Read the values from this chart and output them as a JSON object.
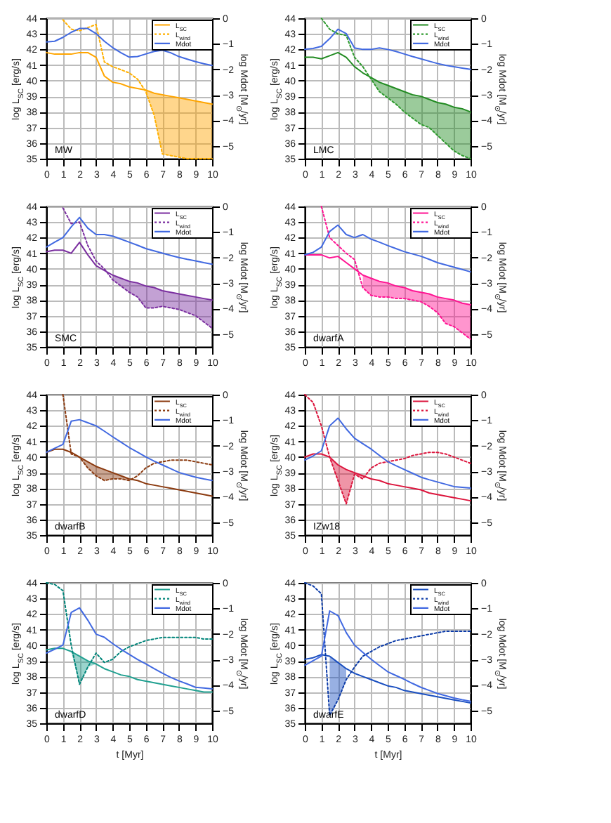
{
  "chart_data": [
    {
      "type": "line",
      "x": [
        0,
        0.5,
        1,
        1.5,
        2,
        2.5,
        3,
        3.5,
        4,
        4.5,
        5,
        5.5,
        6,
        6.5,
        7,
        7.5,
        8,
        8.5,
        9,
        9.5,
        10
      ],
      "xlim": [
        0,
        10
      ],
      "xticks": [
        0,
        1,
        2,
        3,
        4,
        5,
        6,
        7,
        8,
        9,
        10
      ],
      "ylim": [
        35,
        44
      ],
      "yticks": [
        35,
        36,
        37,
        38,
        39,
        40,
        41,
        42,
        43,
        44
      ],
      "y2lim": [
        -5.5,
        0
      ],
      "y2ticks": [
        -5,
        -4,
        -3,
        -2,
        -1,
        0
      ],
      "ylabel": "log L$_{SC}$ [erg/s]",
      "y2label": "log Mdot [M$_{⊙}$/yr]",
      "grid": true,
      "legend": "top right",
      "annotations": [
        "MW"
      ],
      "series": [
        {
          "name": "L$_{SC}$",
          "color": "#ffa500",
          "values": [
            41.8,
            41.7,
            41.7,
            41.7,
            41.8,
            41.8,
            41.5,
            40.3,
            39.9,
            39.8,
            39.6,
            39.5,
            39.4,
            39.2,
            39.1,
            39.0,
            38.9,
            38.8,
            38.7,
            38.6,
            38.5
          ],
          "lower": [
            null,
            null,
            null,
            null,
            null,
            null,
            null,
            null,
            null,
            null,
            null,
            null,
            39.3,
            37.8,
            35.3,
            35.2,
            35.1,
            35.0,
            35.0,
            35.0,
            35.0
          ],
          "upper": [
            null,
            null,
            null,
            null,
            null,
            null,
            null,
            null,
            null,
            null,
            null,
            null,
            39.4,
            39.2,
            39.1,
            39.0,
            38.9,
            38.8,
            38.7,
            38.6,
            38.5
          ]
        },
        {
          "name": "L$_{wind}$",
          "color": "#ffb000",
          "line_style": "dotted",
          "values": [
            null,
            null,
            43.9,
            43.3,
            43.2,
            43.4,
            43.6,
            41.2,
            40.9,
            40.7,
            40.5,
            40.1,
            39.3,
            37.8,
            35.3,
            35.2,
            35.1,
            35.0,
            35.0,
            35.0,
            35.0
          ]
        },
        {
          "name": "Mdot",
          "color": "#4169e1",
          "axis": "y2",
          "values": [
            -0.93,
            -0.9,
            -0.75,
            -0.55,
            -0.4,
            -0.4,
            -0.6,
            -0.9,
            -1.15,
            -1.35,
            -1.52,
            -1.5,
            -1.4,
            -1.3,
            -1.25,
            -1.35,
            -1.5,
            -1.6,
            -1.7,
            -1.78,
            -1.85
          ]
        }
      ]
    },
    {
      "type": "line",
      "x": [
        0,
        0.5,
        1,
        1.5,
        2,
        2.5,
        3,
        3.5,
        4,
        4.5,
        5,
        5.5,
        6,
        6.5,
        7,
        7.5,
        8,
        8.5,
        9,
        9.5,
        10
      ],
      "xlim": [
        0,
        10
      ],
      "xticks": [
        0,
        1,
        2,
        3,
        4,
        5,
        6,
        7,
        8,
        9,
        10
      ],
      "ylim": [
        35,
        44
      ],
      "yticks": [
        35,
        36,
        37,
        38,
        39,
        40,
        41,
        42,
        43,
        44
      ],
      "y2lim": [
        -5.5,
        0
      ],
      "y2ticks": [
        -5,
        -4,
        -3,
        -2,
        -1,
        0
      ],
      "ylabel": "log L$_{SC}$ [erg/s]",
      "y2label": "log Mdot [M$_{⊙}$/yr]",
      "grid": true,
      "legend": "top right",
      "annotations": [
        "LMC"
      ],
      "series": [
        {
          "name": "L$_{SC}$",
          "color": "#228b22",
          "values": [
            41.5,
            41.5,
            41.4,
            41.6,
            41.8,
            41.5,
            40.9,
            40.5,
            40.2,
            39.9,
            39.7,
            39.5,
            39.3,
            39.1,
            39.0,
            38.8,
            38.6,
            38.5,
            38.3,
            38.2,
            38.0
          ],
          "lower": [
            null,
            null,
            null,
            null,
            null,
            null,
            null,
            null,
            40.1,
            39.3,
            38.9,
            38.5,
            38.0,
            37.6,
            37.2,
            37.0,
            36.5,
            36.0,
            35.5,
            35.2,
            35.0
          ],
          "upper": [
            null,
            null,
            null,
            null,
            null,
            null,
            null,
            null,
            40.2,
            39.9,
            39.7,
            39.5,
            39.3,
            39.1,
            39.0,
            38.8,
            38.6,
            38.5,
            38.3,
            38.2,
            38.0
          ]
        },
        {
          "name": "L$_{wind}$",
          "color": "#2e9a2e",
          "line_style": "dotted",
          "values": [
            null,
            null,
            44,
            43.3,
            43.0,
            42.9,
            41.5,
            40.9,
            40.1,
            39.3,
            38.9,
            38.5,
            38.0,
            37.6,
            37.2,
            37.0,
            36.5,
            36.0,
            35.5,
            35.2,
            35.0
          ]
        },
        {
          "name": "Mdot",
          "color": "#4169e1",
          "axis": "y2",
          "values": [
            -1.22,
            -1.18,
            -1.1,
            -0.8,
            -0.43,
            -0.6,
            -1.16,
            -1.22,
            -1.22,
            -1.16,
            -1.22,
            -1.3,
            -1.4,
            -1.5,
            -1.59,
            -1.68,
            -1.77,
            -1.84,
            -1.9,
            -1.95,
            -2.0
          ]
        }
      ]
    },
    {
      "type": "line",
      "x": [
        0,
        0.5,
        1,
        1.5,
        2,
        2.5,
        3,
        3.5,
        4,
        4.5,
        5,
        5.5,
        6,
        6.5,
        7,
        7.5,
        8,
        8.5,
        9,
        9.5,
        10
      ],
      "xlim": [
        0,
        10
      ],
      "xticks": [
        0,
        1,
        2,
        3,
        4,
        5,
        6,
        7,
        8,
        9,
        10
      ],
      "ylim": [
        35,
        44
      ],
      "yticks": [
        35,
        36,
        37,
        38,
        39,
        40,
        41,
        42,
        43,
        44
      ],
      "y2lim": [
        -5.5,
        0
      ],
      "y2ticks": [
        -5,
        -4,
        -3,
        -2,
        -1,
        0
      ],
      "ylabel": "log L$_{SC}$ [erg/s]",
      "y2label": "log Mdot [M$_{⊙}$/yr]",
      "grid": true,
      "legend": "top right",
      "annotations": [
        "SMC"
      ],
      "series": [
        {
          "name": "L$_{SC}$",
          "color": "#7b2fa0",
          "values": [
            41.1,
            41.2,
            41.2,
            41.0,
            41.7,
            40.9,
            40.2,
            39.9,
            39.6,
            39.4,
            39.2,
            39.1,
            38.9,
            38.8,
            38.6,
            38.5,
            38.4,
            38.3,
            38.2,
            38.1,
            38.0
          ],
          "lower": [
            null,
            null,
            null,
            null,
            null,
            null,
            null,
            null,
            39.3,
            38.9,
            38.5,
            38.2,
            37.5,
            37.5,
            37.6,
            37.5,
            37.4,
            37.2,
            37.0,
            36.6,
            36.2
          ],
          "upper": [
            null,
            null,
            null,
            null,
            null,
            null,
            null,
            null,
            39.6,
            39.4,
            39.2,
            39.1,
            38.9,
            38.8,
            38.6,
            38.5,
            38.4,
            38.3,
            38.2,
            38.1,
            38.0
          ]
        },
        {
          "name": "L$_{wind}$",
          "color": "#7b2fa0",
          "line_style": "dotted",
          "values": [
            null,
            null,
            43.9,
            42.9,
            43.0,
            41.5,
            40.5,
            40.0,
            39.3,
            38.9,
            38.5,
            38.2,
            37.5,
            37.5,
            37.6,
            37.5,
            37.4,
            37.2,
            37.0,
            36.6,
            36.2
          ]
        },
        {
          "name": "Mdot",
          "color": "#4169e1",
          "axis": "y2",
          "values": [
            -1.59,
            -1.4,
            -1.22,
            -0.8,
            -0.43,
            -0.85,
            -1.1,
            -1.1,
            -1.16,
            -1.28,
            -1.4,
            -1.52,
            -1.65,
            -1.74,
            -1.83,
            -1.92,
            -2.0,
            -2.07,
            -2.13,
            -2.2,
            -2.26
          ]
        }
      ]
    },
    {
      "type": "line",
      "x": [
        0,
        0.5,
        1,
        1.5,
        2,
        2.5,
        3,
        3.5,
        4,
        4.5,
        5,
        5.5,
        6,
        6.5,
        7,
        7.5,
        8,
        8.5,
        9,
        9.5,
        10
      ],
      "xlim": [
        0,
        10
      ],
      "xticks": [
        0,
        1,
        2,
        3,
        4,
        5,
        6,
        7,
        8,
        9,
        10
      ],
      "ylim": [
        35,
        44
      ],
      "yticks": [
        35,
        36,
        37,
        38,
        39,
        40,
        41,
        42,
        43,
        44
      ],
      "y2lim": [
        -5.5,
        0
      ],
      "y2ticks": [
        -5,
        -4,
        -3,
        -2,
        -1,
        0
      ],
      "ylabel": "log L$_{SC}$ [erg/s]",
      "y2label": "log Mdot [M$_{⊙}$/yr]",
      "grid": true,
      "legend": "top right",
      "annotations": [
        "dwarfA"
      ],
      "series": [
        {
          "name": "L$_{SC}$",
          "color": "#ff1493",
          "values": [
            40.9,
            40.9,
            40.9,
            40.7,
            40.8,
            40.4,
            40.0,
            39.6,
            39.4,
            39.2,
            39.1,
            38.9,
            38.8,
            38.6,
            38.5,
            38.4,
            38.2,
            38.1,
            38.0,
            37.8,
            37.7
          ],
          "lower": [
            null,
            null,
            null,
            null,
            null,
            null,
            null,
            38.8,
            38.3,
            38.2,
            38.2,
            38.1,
            38.1,
            38.0,
            37.9,
            37.6,
            37.2,
            36.5,
            36.3,
            35.9,
            35.5
          ],
          "upper": [
            null,
            null,
            null,
            null,
            null,
            null,
            null,
            39.6,
            39.4,
            39.2,
            39.1,
            38.9,
            38.8,
            38.6,
            38.5,
            38.4,
            38.2,
            38.1,
            38.0,
            37.8,
            37.7
          ]
        },
        {
          "name": "L$_{wind}$",
          "color": "#ff1493",
          "line_style": "dotted",
          "values": [
            null,
            null,
            44,
            42.0,
            41.5,
            41.0,
            40.6,
            38.8,
            38.3,
            38.2,
            38.2,
            38.1,
            38.1,
            38.0,
            37.9,
            37.6,
            37.2,
            36.5,
            36.3,
            35.9,
            35.5
          ]
        },
        {
          "name": "Mdot",
          "color": "#4169e1",
          "axis": "y2",
          "values": [
            -1.89,
            -1.8,
            -1.59,
            -0.98,
            -0.73,
            -1.1,
            -1.22,
            -1.1,
            -1.28,
            -1.4,
            -1.53,
            -1.65,
            -1.77,
            -1.86,
            -1.95,
            -2.07,
            -2.2,
            -2.29,
            -2.38,
            -2.47,
            -2.56
          ]
        }
      ]
    },
    {
      "type": "line",
      "x": [
        0,
        0.5,
        1,
        1.5,
        2,
        2.5,
        3,
        3.5,
        4,
        4.5,
        5,
        5.5,
        6,
        6.5,
        7,
        7.5,
        8,
        8.5,
        9,
        9.5,
        10
      ],
      "xlim": [
        0,
        10
      ],
      "xticks": [
        0,
        1,
        2,
        3,
        4,
        5,
        6,
        7,
        8,
        9,
        10
      ],
      "ylim": [
        35,
        44
      ],
      "yticks": [
        35,
        36,
        37,
        38,
        39,
        40,
        41,
        42,
        43,
        44
      ],
      "y2lim": [
        -5.5,
        0
      ],
      "y2ticks": [
        -5,
        -4,
        -3,
        -2,
        -1,
        0
      ],
      "ylabel": "log L$_{SC}$ [erg/s]",
      "y2label": "log Mdot [M$_{⊙}$/yr]",
      "grid": true,
      "legend": "top right",
      "annotations": [
        "dwarfB"
      ],
      "series": [
        {
          "name": "L$_{SC}$",
          "color": "#8b3a0f",
          "values": [
            40.3,
            40.5,
            40.5,
            40.3,
            40.0,
            39.7,
            39.4,
            39.2,
            39.0,
            38.8,
            38.6,
            38.5,
            38.3,
            38.2,
            38.1,
            38.0,
            37.9,
            37.8,
            37.7,
            37.6,
            37.5
          ],
          "lower": [
            null,
            null,
            null,
            null,
            40.0,
            39.3,
            38.8,
            38.5,
            38.6,
            38.6,
            38.5,
            null,
            null,
            null,
            null,
            null,
            null,
            null,
            null,
            null,
            null
          ],
          "upper": [
            null,
            null,
            null,
            null,
            40.0,
            39.7,
            39.4,
            39.2,
            39.0,
            38.8,
            38.6,
            null,
            null,
            null,
            null,
            null,
            null,
            null,
            null,
            null,
            null
          ]
        },
        {
          "name": "L$_{wind}$",
          "color": "#8b3a0f",
          "line_style": "dotted",
          "values": [
            null,
            null,
            44,
            40.2,
            40.0,
            39.3,
            38.8,
            38.5,
            38.6,
            38.6,
            38.5,
            38.8,
            39.3,
            39.6,
            39.7,
            39.8,
            39.8,
            39.8,
            39.7,
            39.6,
            39.5
          ]
        },
        {
          "name": "Mdot",
          "color": "#4169e1",
          "axis": "y2",
          "values": [
            -2.26,
            -2.1,
            -1.95,
            -1.04,
            -0.98,
            -1.1,
            -1.22,
            -1.43,
            -1.65,
            -1.86,
            -2.07,
            -2.25,
            -2.44,
            -2.6,
            -2.75,
            -2.9,
            -3.05,
            -3.14,
            -3.23,
            -3.3,
            -3.36
          ]
        }
      ]
    },
    {
      "type": "line",
      "x": [
        0,
        0.5,
        1,
        1.5,
        2,
        2.5,
        3,
        3.5,
        4,
        4.5,
        5,
        5.5,
        6,
        6.5,
        7,
        7.5,
        8,
        8.5,
        9,
        9.5,
        10
      ],
      "xlim": [
        0,
        10
      ],
      "xticks": [
        0,
        1,
        2,
        3,
        4,
        5,
        6,
        7,
        8,
        9,
        10
      ],
      "ylim": [
        35,
        44
      ],
      "yticks": [
        35,
        36,
        37,
        38,
        39,
        40,
        41,
        42,
        43,
        44
      ],
      "y2lim": [
        -5.5,
        0
      ],
      "y2ticks": [
        -5,
        -4,
        -3,
        -2,
        -1,
        0
      ],
      "ylabel": "log L$_{SC}$ [erg/s]",
      "y2label": "log Mdot [M$_{⊙}$/yr]",
      "grid": true,
      "legend": "top right",
      "annotations": [
        "IZw18"
      ],
      "series": [
        {
          "name": "L$_{SC}$",
          "color": "#dc143c",
          "values": [
            40.0,
            40.2,
            40.2,
            40.0,
            39.5,
            39.2,
            39.0,
            38.8,
            38.6,
            38.5,
            38.3,
            38.2,
            38.1,
            38.0,
            37.9,
            37.7,
            37.6,
            37.5,
            37.4,
            37.3,
            37.2
          ],
          "lower": [
            null,
            null,
            null,
            40.0,
            38.5,
            37.0,
            38.9,
            38.6,
            null,
            null,
            null,
            null,
            null,
            null,
            null,
            null,
            null,
            null,
            null,
            null,
            null
          ],
          "upper": [
            null,
            null,
            null,
            40.0,
            39.5,
            39.2,
            39.0,
            38.8,
            null,
            null,
            null,
            null,
            null,
            null,
            null,
            null,
            null,
            null,
            null,
            null,
            null
          ]
        },
        {
          "name": "L$_{wind}$",
          "color": "#dc143c",
          "line_style": "dotted",
          "values": [
            44,
            43.5,
            42.0,
            40.0,
            38.5,
            37.0,
            38.9,
            38.6,
            39.3,
            39.6,
            39.7,
            39.8,
            39.9,
            40.1,
            40.2,
            40.3,
            40.3,
            40.2,
            40.0,
            39.8,
            39.6
          ]
        },
        {
          "name": "Mdot",
          "color": "#4169e1",
          "axis": "y2",
          "values": [
            -2.56,
            -2.4,
            -2.2,
            -1.22,
            -0.92,
            -1.34,
            -1.71,
            -1.92,
            -2.13,
            -2.38,
            -2.62,
            -2.78,
            -2.93,
            -3.08,
            -3.23,
            -3.33,
            -3.42,
            -3.51,
            -3.6,
            -3.63,
            -3.66
          ]
        }
      ]
    },
    {
      "type": "line",
      "x": [
        0,
        0.5,
        1,
        1.5,
        2,
        2.5,
        3,
        3.5,
        4,
        4.5,
        5,
        5.5,
        6,
        6.5,
        7,
        7.5,
        8,
        8.5,
        9,
        9.5,
        10
      ],
      "xlim": [
        0,
        10
      ],
      "xticks": [
        0,
        1,
        2,
        3,
        4,
        5,
        6,
        7,
        8,
        9,
        10
      ],
      "ylim": [
        35,
        44
      ],
      "yticks": [
        35,
        36,
        37,
        38,
        39,
        40,
        41,
        42,
        43,
        44
      ],
      "y2lim": [
        -5.5,
        0
      ],
      "y2ticks": [
        -5,
        -4,
        -3,
        -2,
        -1,
        0
      ],
      "xlabel": "t [Myr]",
      "ylabel": "log L$_{SC}$ [erg/s]",
      "y2label": "log Mdot [M$_{⊙}$/yr]",
      "grid": true,
      "legend": "top right",
      "annotations": [
        "dwarfD"
      ],
      "series": [
        {
          "name": "L$_{SC}$",
          "color": "#20a090",
          "values": [
            39.7,
            39.8,
            39.8,
            39.6,
            39.3,
            39.0,
            38.8,
            38.5,
            38.3,
            38.1,
            38.0,
            37.8,
            37.7,
            37.6,
            37.5,
            37.4,
            37.3,
            37.2,
            37.1,
            37.0,
            37.0
          ],
          "lower": [
            null,
            null,
            null,
            39.6,
            37.5,
            38.6,
            38.8,
            null,
            null,
            null,
            null,
            null,
            null,
            null,
            null,
            null,
            null,
            null,
            null,
            null,
            null
          ],
          "upper": [
            null,
            null,
            null,
            39.6,
            39.3,
            39.0,
            38.8,
            null,
            null,
            null,
            null,
            null,
            null,
            null,
            null,
            null,
            null,
            null,
            null,
            null,
            null
          ]
        },
        {
          "name": "L$_{wind}$",
          "color": "#00857a",
          "line_style": "dotted",
          "values": [
            44,
            43.9,
            43.5,
            40.0,
            37.5,
            38.6,
            39.5,
            38.9,
            39.1,
            39.6,
            39.9,
            40.1,
            40.3,
            40.4,
            40.5,
            40.5,
            40.5,
            40.5,
            40.5,
            40.4,
            40.4
          ]
        },
        {
          "name": "Mdot",
          "color": "#4169e1",
          "axis": "y2",
          "values": [
            -2.75,
            -2.6,
            -2.44,
            -1.16,
            -0.98,
            -1.46,
            -2.01,
            -2.13,
            -2.38,
            -2.6,
            -2.8,
            -3.0,
            -3.17,
            -3.36,
            -3.54,
            -3.7,
            -3.84,
            -3.96,
            -4.09,
            -4.12,
            -4.15
          ]
        }
      ]
    },
    {
      "type": "line",
      "x": [
        0,
        0.5,
        1,
        1.5,
        2,
        2.5,
        3,
        3.5,
        4,
        4.5,
        5,
        5.5,
        6,
        6.5,
        7,
        7.5,
        8,
        8.5,
        9,
        9.5,
        10
      ],
      "xlim": [
        0,
        10
      ],
      "xticks": [
        0,
        1,
        2,
        3,
        4,
        5,
        6,
        7,
        8,
        9,
        10
      ],
      "ylim": [
        35,
        44
      ],
      "yticks": [
        35,
        36,
        37,
        38,
        39,
        40,
        41,
        42,
        43,
        44
      ],
      "y2lim": [
        -5.5,
        0
      ],
      "y2ticks": [
        -5,
        -4,
        -3,
        -2,
        -1,
        0
      ],
      "xlabel": "t [Myr]",
      "ylabel": "log L$_{SC}$ [erg/s]",
      "y2label": "log Mdot [M$_{⊙}$/yr]",
      "grid": true,
      "legend": "top right",
      "annotations": [
        "dwarfE"
      ],
      "series": [
        {
          "name": "L$_{SC}$",
          "color": "#1a4fc0",
          "values": [
            39.1,
            39.2,
            39.4,
            39.3,
            38.9,
            38.5,
            38.2,
            38.0,
            37.8,
            37.6,
            37.4,
            37.3,
            37.1,
            37.0,
            36.9,
            36.8,
            36.7,
            36.6,
            36.5,
            36.4,
            36.3
          ],
          "lower": [
            null,
            null,
            null,
            35.5,
            36.5,
            37.8,
            null,
            null,
            null,
            null,
            null,
            null,
            null,
            null,
            null,
            null,
            null,
            null,
            null,
            null,
            null
          ],
          "upper": [
            null,
            null,
            null,
            39.3,
            38.9,
            38.5,
            null,
            null,
            null,
            null,
            null,
            null,
            null,
            null,
            null,
            null,
            null,
            null,
            null,
            null,
            null
          ]
        },
        {
          "name": "L$_{wind}$",
          "color": "#0a3aa8",
          "line_style": "dotted",
          "values": [
            44,
            43.8,
            43.3,
            35.5,
            36.5,
            37.8,
            38.6,
            39.3,
            39.6,
            39.9,
            40.1,
            40.3,
            40.4,
            40.5,
            40.6,
            40.7,
            40.8,
            40.9,
            40.9,
            40.9,
            40.9
          ]
        },
        {
          "name": "Mdot",
          "color": "#4169e1",
          "axis": "y2",
          "values": [
            -3.23,
            -3.05,
            -2.87,
            -1.1,
            -1.28,
            -1.95,
            -2.44,
            -2.72,
            -2.99,
            -3.24,
            -3.48,
            -3.63,
            -3.78,
            -3.94,
            -4.09,
            -4.21,
            -4.33,
            -4.42,
            -4.51,
            -4.58,
            -4.64
          ]
        }
      ]
    }
  ]
}
